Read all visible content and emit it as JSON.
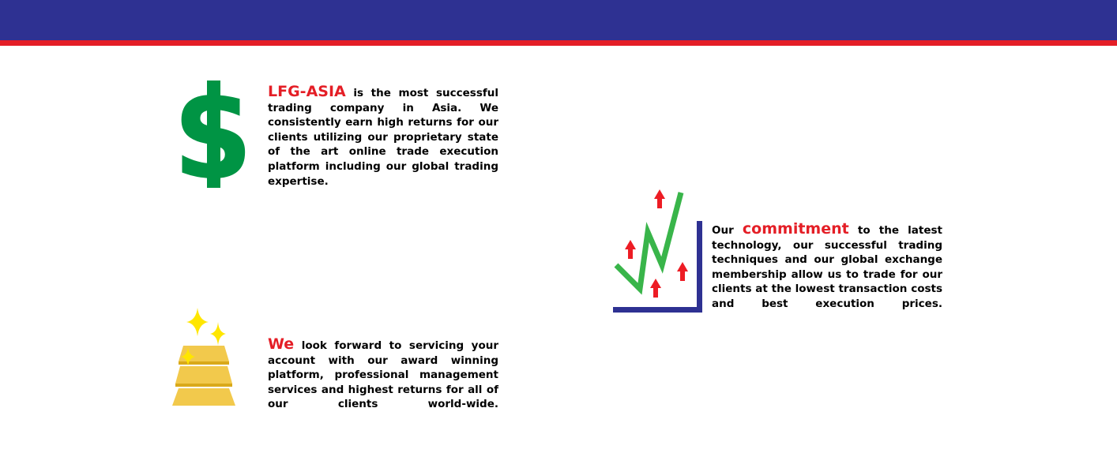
{
  "colors": {
    "header_blue": "#2e3192",
    "header_red": "#e41e26",
    "accent_red": "#e41e26",
    "dollar_green": "#009444",
    "chart_green": "#39b54a",
    "chart_axis_blue": "#2e3192",
    "arrow_red": "#ed1c24",
    "gold": "#f2c94c",
    "gold_dark": "#d9a91a",
    "sparkle_yellow": "#ffe600"
  },
  "blocks": [
    {
      "icon": "dollar-sign-icon",
      "highlight": "LFG-ASIA",
      "text": " is the most successful trading company in Asia.  We consistently earn high returns for our clients utilizing our proprietary state of the art online trade execution platform including our global trading expertise."
    },
    {
      "icon": "rising-chart-icon",
      "prefix": "Our ",
      "highlight": "commitment",
      "text": " to the latest technology, our successful trading techniques and our global exchange membership allow us to trade for our clients at the lowest transaction costs and best execution prices."
    },
    {
      "icon": "gold-bars-icon",
      "highlight": "We",
      "text": " look forward to servicing your account with our award winning platform, professional management services and highest returns for all of our clients world-wide."
    }
  ]
}
